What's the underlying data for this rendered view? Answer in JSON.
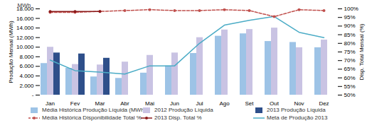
{
  "chart_data": {
    "type": "bar",
    "annotations": [
      "MWh"
    ],
    "ylabel": "Produção Mensal (MWh)",
    "y2label": "Disp. Total Mensal (%)",
    "categories": [
      "Jan",
      "Fev",
      "Mar",
      "Abr",
      "Mai",
      "Jun",
      "Jul",
      "Ago",
      "Set",
      "Out",
      "Nov",
      "Dez"
    ],
    "ylim": [
      0,
      18000
    ],
    "yticks": [
      {
        "value": 0,
        "label": "-"
      },
      {
        "value": 2000,
        "label": "2.000"
      },
      {
        "value": 4000,
        "label": "4.000"
      },
      {
        "value": 6000,
        "label": "6.000"
      },
      {
        "value": 8000,
        "label": "8.000"
      },
      {
        "value": 10000,
        "label": "10.000"
      },
      {
        "value": 12000,
        "label": "12.000"
      },
      {
        "value": 14000,
        "label": "14.000"
      },
      {
        "value": 16000,
        "label": "16.000"
      },
      {
        "value": 18000,
        "label": "18.000"
      }
    ],
    "y2lim": [
      50,
      100
    ],
    "y2ticks": [
      {
        "value": 50,
        "label": "50%"
      },
      {
        "value": 55,
        "label": "55%"
      },
      {
        "value": 60,
        "label": "60%"
      },
      {
        "value": 65,
        "label": "65%"
      },
      {
        "value": 70,
        "label": "70%"
      },
      {
        "value": 75,
        "label": "75%"
      },
      {
        "value": 80,
        "label": "80%"
      },
      {
        "value": 85,
        "label": "85%"
      },
      {
        "value": 90,
        "label": "90%"
      },
      {
        "value": 95,
        "label": "95%"
      },
      {
        "value": 100,
        "label": "100%"
      }
    ],
    "grid": false,
    "legend": "bottom",
    "series": [
      {
        "name": "Média Histórica Produção Líquida (MWh)",
        "type": "bar",
        "color": "#9dc3e6",
        "values": [
          6600,
          5600,
          3800,
          3500,
          4600,
          6100,
          8700,
          12300,
          12800,
          11200,
          11000,
          9900
        ]
      },
      {
        "name": "2012 Produção Líquida",
        "type": "bar",
        "color": "#c9c3e3",
        "values": [
          10000,
          6400,
          6300,
          6900,
          8300,
          8800,
          12000,
          13600,
          13700,
          14000,
          9900,
          11500
        ]
      },
      {
        "name": "2013 Produção Líquida",
        "type": "bar",
        "color": "#2e4f8a",
        "values": [
          8800,
          8600,
          7700,
          null,
          null,
          null,
          null,
          null,
          null,
          null,
          null,
          null
        ]
      },
      {
        "name": "Média Histórica Disponibilidade Total %",
        "type": "line",
        "axis": "y2",
        "color": "#c0504d",
        "line_style": "dashed",
        "marker": "circle",
        "values": [
          98,
          98,
          98.5,
          99,
          99.5,
          99,
          99,
          99.5,
          99,
          95.5,
          99.5,
          99
        ]
      },
      {
        "name": "2013 Disp. Total %",
        "type": "line",
        "axis": "y2",
        "color": "#8b1a1a",
        "line_style": "solid",
        "marker": "circle",
        "values": [
          98.5,
          98.5,
          98.5,
          null,
          null,
          null,
          null,
          null,
          null,
          null,
          null,
          null
        ]
      },
      {
        "name": "Meta de Produção 2013",
        "type": "line",
        "axis": "y",
        "color": "#4bacc6",
        "line_style": "solid",
        "values": [
          7300,
          5100,
          4800,
          4400,
          6100,
          6100,
          10800,
          14600,
          15600,
          16400,
          13100,
          12000
        ]
      }
    ]
  }
}
